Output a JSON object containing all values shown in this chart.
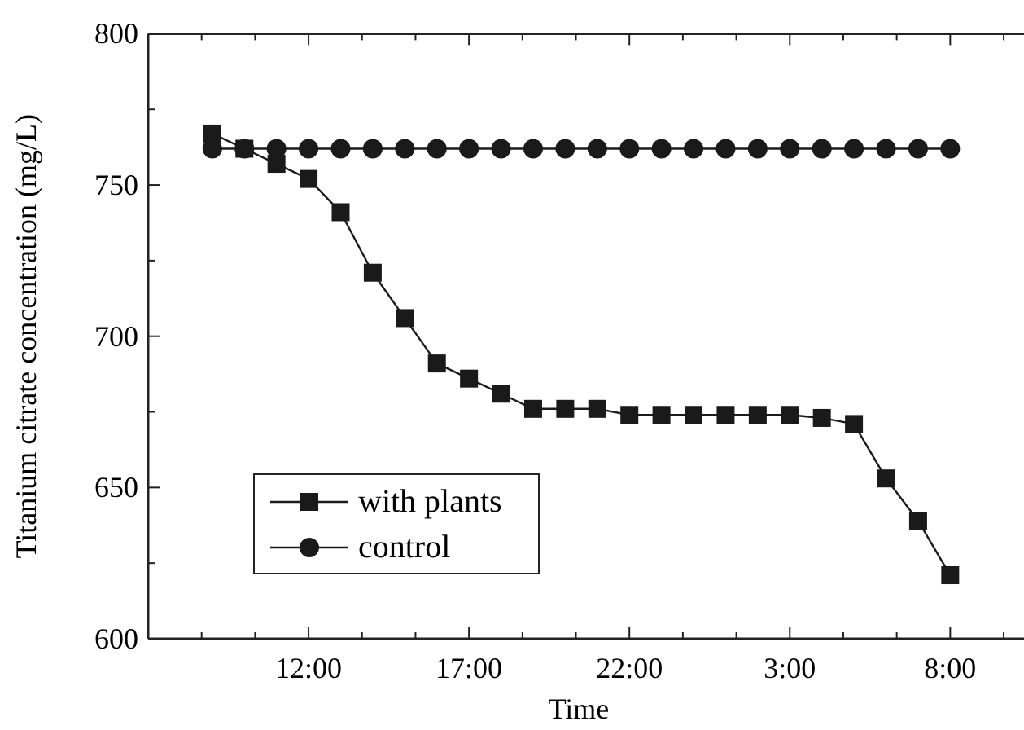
{
  "chart_data": {
    "type": "line",
    "xlabel": "Time",
    "ylabel": "Titanium citrate concentration (mg/L)",
    "xlim": [
      "2000-01-01T07:00",
      "2000-01-02T10:18"
    ],
    "ylim": [
      600,
      800
    ],
    "xticks": [
      {
        "value": "2000-01-01T08:40",
        "label": null
      },
      {
        "value": "2000-01-01T10:20",
        "label": null
      },
      {
        "value": "2000-01-01T12:00",
        "label": "12:00"
      },
      {
        "value": "2000-01-01T13:40",
        "label": null
      },
      {
        "value": "2000-01-01T15:20",
        "label": null
      },
      {
        "value": "2000-01-01T17:00",
        "label": "17:00"
      },
      {
        "value": "2000-01-01T18:40",
        "label": null
      },
      {
        "value": "2000-01-01T20:20",
        "label": null
      },
      {
        "value": "2000-01-01T22:00",
        "label": "22:00"
      },
      {
        "value": "2000-01-01T23:40",
        "label": null
      },
      {
        "value": "2000-01-02T01:20",
        "label": null
      },
      {
        "value": "2000-01-02T03:00",
        "label": "3:00"
      },
      {
        "value": "2000-01-02T04:40",
        "label": null
      },
      {
        "value": "2000-01-02T06:20",
        "label": null
      },
      {
        "value": "2000-01-02T08:00",
        "label": "8:00"
      },
      {
        "value": "2000-01-02T09:40",
        "label": null
      }
    ],
    "yticks": [
      600,
      {
        "value": 625,
        "label": null
      },
      650,
      {
        "value": 675,
        "label": null
      },
      700,
      {
        "value": 725,
        "label": null
      },
      750,
      {
        "value": 775,
        "label": null
      },
      800
    ],
    "x": [
      "2000-01-01T09:00",
      "2000-01-01T10:00",
      "2000-01-01T11:00",
      "2000-01-01T12:00",
      "2000-01-01T13:00",
      "2000-01-01T14:00",
      "2000-01-01T15:00",
      "2000-01-01T16:00",
      "2000-01-01T17:00",
      "2000-01-01T18:00",
      "2000-01-01T19:00",
      "2000-01-01T20:00",
      "2000-01-01T21:00",
      "2000-01-01T22:00",
      "2000-01-01T23:00",
      "2000-01-02T00:00",
      "2000-01-02T01:00",
      "2000-01-02T02:00",
      "2000-01-02T03:00",
      "2000-01-02T04:00",
      "2000-01-02T05:00",
      "2000-01-02T06:00",
      "2000-01-02T07:00",
      "2000-01-02T08:00"
    ],
    "series": [
      {
        "name": "with plants",
        "color": "#1a1a1a",
        "marker": "square",
        "values": [
          767,
          762,
          757,
          752,
          741,
          721,
          706,
          691,
          686,
          681,
          676,
          676,
          676,
          674,
          674,
          674,
          674,
          674,
          674,
          673,
          671,
          653,
          639,
          621
        ]
      },
      {
        "name": "control",
        "color": "#1a1a1a",
        "marker": "circle",
        "values": [
          762,
          762,
          762,
          762,
          762,
          762,
          762,
          762,
          762,
          762,
          762,
          762,
          762,
          762,
          762,
          762,
          762,
          762,
          762,
          762,
          762,
          762,
          762,
          762
        ]
      }
    ],
    "legend": "bottom left",
    "grid": false,
    "line_style": "solid"
  }
}
